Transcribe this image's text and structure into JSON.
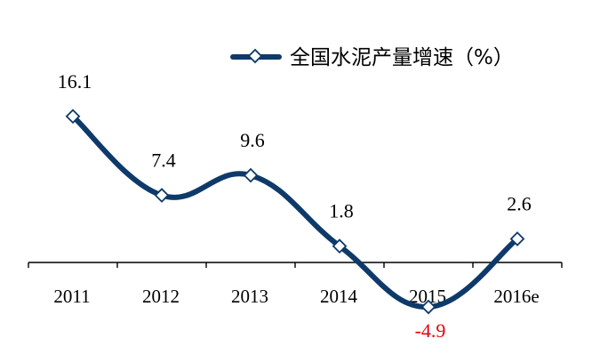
{
  "chart_data": {
    "type": "line",
    "categories": [
      "2011",
      "2012",
      "2013",
      "2014",
      "2015",
      "2016e"
    ],
    "series": [
      {
        "name": "全国水泥产量增速（%）",
        "values": [
          16.1,
          7.4,
          9.6,
          1.8,
          -4.9,
          2.6
        ],
        "data_labels": [
          "16.1",
          "7.4",
          "9.6",
          "1.8",
          "-4.9",
          "2.6"
        ]
      }
    ],
    "ylim": [
      -7,
      19
    ],
    "grid": false,
    "legend_placement": "top-right",
    "colors": {
      "line": "#0e3a6a",
      "marker_fill": "#ffffff",
      "axis": "#000000",
      "label": "#000000",
      "negative_label": "#e8000b"
    }
  }
}
